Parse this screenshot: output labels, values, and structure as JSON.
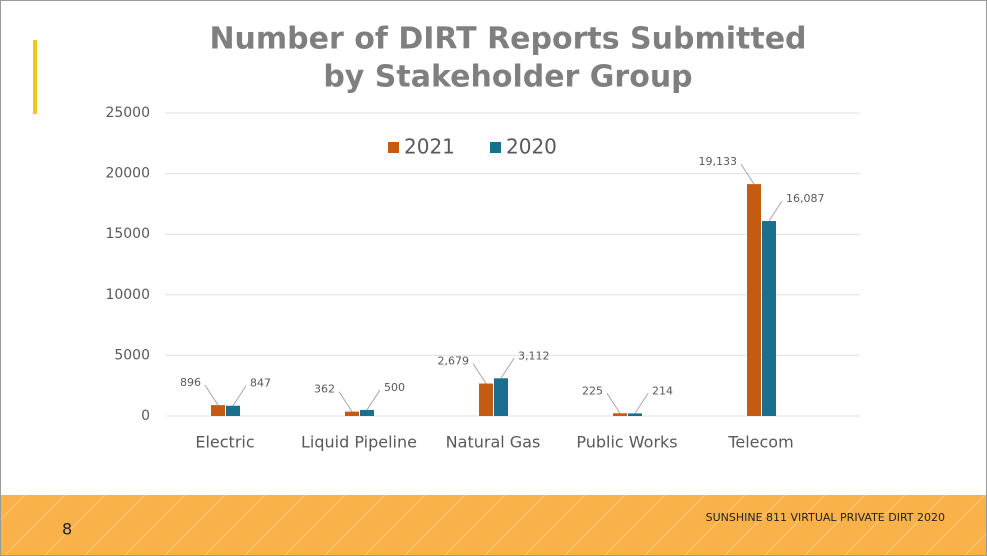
{
  "chart_data": {
    "type": "bar",
    "title": [
      "Number of DIRT Reports Submitted",
      "by Stakeholder Group"
    ],
    "categories": [
      "Electric",
      "Liquid Pipeline",
      "Natural Gas",
      "Public Works",
      "Telecom"
    ],
    "series": [
      {
        "name": "2021",
        "color": "#c55a11",
        "values": [
          896,
          362,
          2679,
          225,
          19133
        ],
        "value_labels": [
          "896",
          "362",
          "2,679",
          "225",
          "19,133"
        ]
      },
      {
        "name": "2020",
        "color": "#1b6f8e",
        "values": [
          847,
          500,
          3112,
          214,
          16087
        ],
        "value_labels": [
          "847",
          "500",
          "3,112",
          "214",
          "16,087"
        ]
      }
    ],
    "ylim": [
      0,
      25000
    ],
    "yticks": [
      0,
      5000,
      10000,
      15000,
      20000,
      25000
    ],
    "grid": true,
    "legend": "top"
  },
  "footer": {
    "page_number": "8",
    "text": "SUNSHINE 811 VIRTUAL PRIVATE DIRT 2020"
  }
}
